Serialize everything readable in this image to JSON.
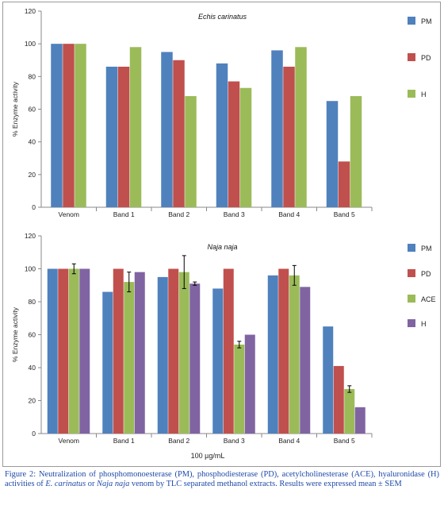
{
  "chart_data": [
    {
      "type": "bar",
      "title": "Echis carinatus",
      "ylabel": "% Enzyme activity",
      "xlabel": "",
      "ylim": [
        0,
        120
      ],
      "yticks": [
        0,
        20,
        40,
        60,
        80,
        100,
        120
      ],
      "categories": [
        "Venom",
        "Band 1",
        "Band 2",
        "Band 3",
        "Band 4",
        "Band 5"
      ],
      "legend_position": "right",
      "grid": false,
      "series": [
        {
          "name": "PM",
          "color": "#4f81bd",
          "values": [
            100,
            86,
            95,
            88,
            96,
            65
          ]
        },
        {
          "name": "PD",
          "color": "#c0504d",
          "values": [
            100,
            86,
            90,
            77,
            86,
            28
          ]
        },
        {
          "name": "H",
          "color": "#9bbb59",
          "values": [
            100,
            98,
            68,
            73,
            98,
            68
          ]
        }
      ]
    },
    {
      "type": "bar",
      "title": "Naja naja",
      "ylabel": "% Enzyme activity",
      "xlabel": "100 µg/mL",
      "ylim": [
        0,
        120
      ],
      "yticks": [
        0,
        20,
        40,
        60,
        80,
        100,
        120
      ],
      "categories": [
        "Venom",
        "Band 1",
        "Band 2",
        "Band 3",
        "Band 4",
        "Band 5"
      ],
      "legend_position": "right",
      "grid": false,
      "series": [
        {
          "name": "PM",
          "color": "#4f81bd",
          "values": [
            100,
            86,
            95,
            88,
            96,
            65
          ]
        },
        {
          "name": "PD",
          "color": "#c0504d",
          "values": [
            100,
            100,
            100,
            100,
            100,
            41
          ]
        },
        {
          "name": "ACE",
          "color": "#9bbb59",
          "values": [
            100,
            92,
            98,
            54,
            96,
            27
          ],
          "errors": [
            3,
            6,
            10,
            2,
            6,
            2
          ]
        },
        {
          "name": "H",
          "color": "#8064a2",
          "values": [
            100,
            98,
            91,
            60,
            89,
            16
          ],
          "errors": [
            0,
            0,
            1,
            0,
            0,
            0
          ]
        }
      ]
    }
  ],
  "caption": {
    "prefix": "Figure 2: Neutralization of phosphomonoesterase (PM), phosphodiesterase (PD), acetylcholinesterase (ACE), hyaluronidase (H) activities of ",
    "species1": "E. carinatus",
    "middle": " or ",
    "species2": "Naja naja",
    "suffix": " venom by TLC separated methanol extracts. Results were expressed mean ± SEM"
  }
}
